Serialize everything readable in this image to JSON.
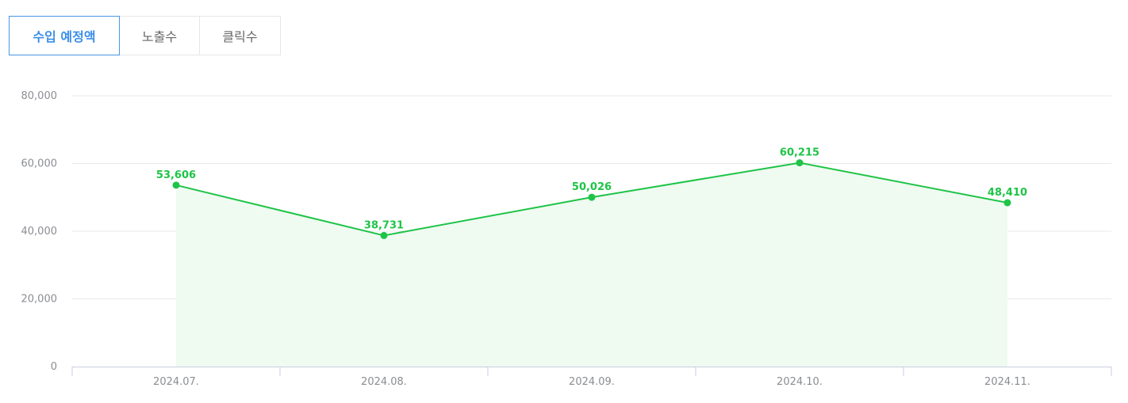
{
  "tabs": [
    {
      "label": "수입 예정액",
      "active": true
    },
    {
      "label": "노출수",
      "active": false
    },
    {
      "label": "클릭수",
      "active": false
    }
  ],
  "colors": {
    "accent": "#3b8ee8",
    "series": "#1ec447",
    "area": "#effaf1",
    "grid": "#e6e8ec",
    "axis": "#c9cfe0",
    "tick_text": "#8a8d93"
  },
  "chart_data": {
    "type": "line",
    "categories": [
      "2024.07.",
      "2024.08.",
      "2024.09.",
      "2024.10.",
      "2024.11."
    ],
    "series": [
      {
        "values": [
          53606,
          38731,
          50026,
          60215,
          48410
        ]
      }
    ],
    "data_labels": [
      "53,606",
      "38,731",
      "50,026",
      "60,215",
      "48,410"
    ],
    "yticks": [
      "0",
      "20,000",
      "40,000",
      "60,000",
      "80,000"
    ],
    "ylim": [
      0,
      80000
    ],
    "grid": true,
    "area_fill": true
  }
}
